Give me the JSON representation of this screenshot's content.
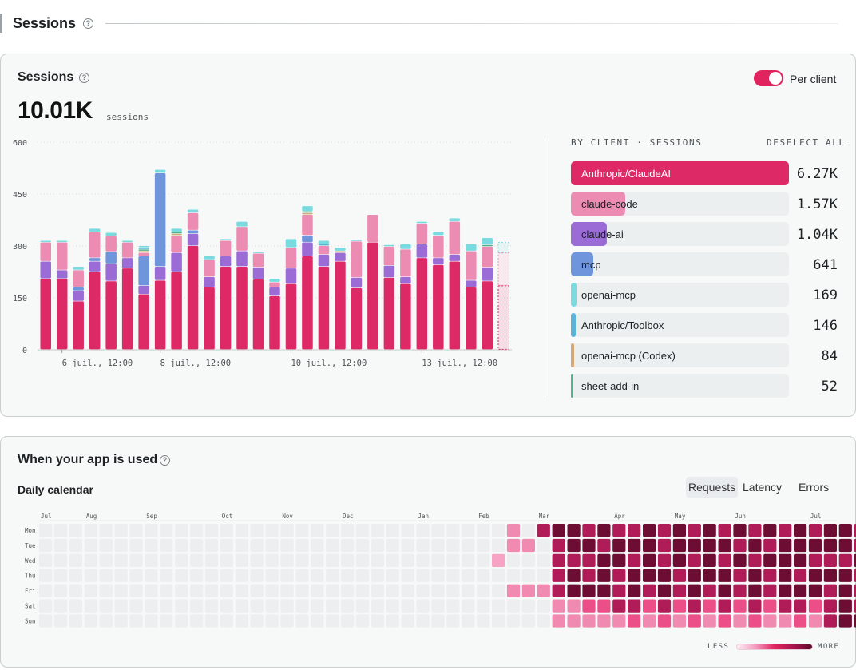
{
  "section": {
    "title": "Sessions"
  },
  "sessions_card": {
    "title": "Sessions",
    "total": "10.01K",
    "total_unit": "sessions",
    "toggle": {
      "label": "Per client",
      "on": true
    }
  },
  "client_list": {
    "header": "BY CLIENT · SESSIONS",
    "deselect": "DESELECT ALL",
    "items": [
      {
        "name": "Anthropic/ClaudeAI",
        "value": "6.27K",
        "share": 1.0,
        "color": "#dd2a66"
      },
      {
        "name": "claude-code",
        "value": "1.57K",
        "share": 0.25,
        "color": "#ec8cb2"
      },
      {
        "name": "claude-ai",
        "value": "1.04K",
        "share": 0.166,
        "color": "#9c6cd6"
      },
      {
        "name": "mcp",
        "value": "641",
        "share": 0.103,
        "color": "#6f95dc"
      },
      {
        "name": "openai-mcp",
        "value": "169",
        "share": 0.027,
        "color": "#79dbe0"
      },
      {
        "name": "Anthropic/Toolbox",
        "value": "146",
        "share": 0.023,
        "color": "#5bb4d8"
      },
      {
        "name": "openai-mcp (Codex)",
        "value": "84",
        "share": 0.013,
        "color": "#d6a877"
      },
      {
        "name": "sheet-add-in",
        "value": "52",
        "share": 0.008,
        "color": "#4fb38e"
      }
    ]
  },
  "chart_data": {
    "type": "bar",
    "stacked": true,
    "ylim": [
      0,
      600
    ],
    "yticks": [
      "0",
      "150",
      "300",
      "450",
      "600"
    ],
    "xticks": [
      {
        "label": "6 juil., 12:00",
        "index": 1
      },
      {
        "label": "8 juil., 12:00",
        "index": 7
      },
      {
        "label": "10 juil., 12:00",
        "index": 15
      },
      {
        "label": "13 juil., 12:00",
        "index": 23
      }
    ],
    "series": [
      {
        "name": "Anthropic/ClaudeAI",
        "color": "#dd2a66",
        "values": [
          205,
          205,
          140,
          225,
          198,
          235,
          160,
          200,
          225,
          300,
          180,
          240,
          240,
          203,
          155,
          190,
          270,
          240,
          255,
          178,
          310,
          208,
          190,
          265,
          245,
          255,
          180,
          198,
          185
        ]
      },
      {
        "name": "claude-ai",
        "color": "#9c6cd6",
        "values": [
          50,
          25,
          30,
          30,
          50,
          30,
          25,
          40,
          55,
          35,
          30,
          30,
          45,
          35,
          25,
          45,
          40,
          35,
          25,
          30,
          0,
          35,
          20,
          40,
          20,
          20,
          20,
          40,
          0
        ]
      },
      {
        "name": "mcp",
        "color": "#6f95dc",
        "values": [
          0,
          0,
          10,
          10,
          35,
          0,
          85,
          270,
          0,
          10,
          0,
          0,
          0,
          0,
          0,
          0,
          20,
          0,
          0,
          0,
          0,
          0,
          0,
          0,
          0,
          0,
          0,
          0,
          0
        ]
      },
      {
        "name": "claude-code",
        "color": "#ec8cb2",
        "values": [
          55,
          80,
          50,
          75,
          45,
          45,
          10,
          0,
          50,
          50,
          50,
          45,
          70,
          40,
          15,
          60,
          60,
          25,
          0,
          105,
          80,
          55,
          80,
          60,
          65,
          95,
          85,
          60,
          95
        ]
      },
      {
        "name": "openai-mcp (Codex)",
        "color": "#d6a877",
        "values": [
          0,
          0,
          0,
          0,
          0,
          0,
          5,
          0,
          5,
          0,
          0,
          0,
          0,
          0,
          0,
          0,
          5,
          0,
          5,
          0,
          0,
          0,
          0,
          0,
          0,
          0,
          0,
          0,
          0
        ]
      },
      {
        "name": "sheet-add-in",
        "color": "#4fb38e",
        "values": [
          0,
          0,
          0,
          0,
          0,
          0,
          5,
          0,
          5,
          0,
          0,
          0,
          0,
          0,
          0,
          0,
          5,
          0,
          0,
          0,
          0,
          0,
          0,
          0,
          0,
          0,
          0,
          5,
          0
        ]
      },
      {
        "name": "Anthropic/Toolbox",
        "color": "#5bb4d8",
        "values": [
          0,
          0,
          0,
          0,
          0,
          0,
          5,
          0,
          0,
          0,
          0,
          0,
          0,
          0,
          0,
          0,
          0,
          5,
          0,
          0,
          0,
          0,
          0,
          0,
          0,
          0,
          0,
          0,
          0
        ]
      },
      {
        "name": "openai-mcp",
        "color": "#79dbe0",
        "values": [
          5,
          5,
          10,
          10,
          10,
          5,
          5,
          10,
          10,
          10,
          10,
          5,
          15,
          5,
          10,
          25,
          15,
          10,
          10,
          5,
          0,
          5,
          15,
          5,
          10,
          10,
          20,
          20,
          30
        ]
      }
    ],
    "partial_last": true
  },
  "usage_card": {
    "title": "When your app is used",
    "subtitle": "Daily calendar",
    "tabs": [
      "Requests",
      "Latency",
      "Errors"
    ],
    "active_tab": "Requests",
    "weekdays": [
      "Mon",
      "Tue",
      "Wed",
      "Thu",
      "Fri",
      "Sat",
      "Sun"
    ],
    "months": [
      {
        "label": "Jul",
        "col": 0
      },
      {
        "label": "Aug",
        "col": 3
      },
      {
        "label": "Sep",
        "col": 7
      },
      {
        "label": "Oct",
        "col": 12
      },
      {
        "label": "Nov",
        "col": 16
      },
      {
        "label": "Dec",
        "col": 20
      },
      {
        "label": "Jan",
        "col": 25
      },
      {
        "label": "Feb",
        "col": 29
      },
      {
        "label": "Mar",
        "col": 33
      },
      {
        "label": "Apr",
        "col": 38
      },
      {
        "label": "May",
        "col": 42
      },
      {
        "label": "Jun",
        "col": 46
      },
      {
        "label": "Jul",
        "col": 51
      }
    ],
    "levels_by_weekday": [
      "00000000000000000000000000000002045545445454545454545545",
      "0000000000000000000000000000000220455455545555454555554",
      "0000000000000000000000000000001000444554545454545554445",
      "0000000000000000000000000000000000454545554555454545554",
      "0000000000000000000000000000000222455545454545454555454",
      "0000000000000000000000000000000000223344343434343443454",
      "0000000000000000000000000000000000222223232323232232455"
    ],
    "legend_less": "LESS",
    "legend_more": "MORE",
    "level_colors": [
      "#eceeef",
      "#f7a3c3",
      "#f18ab0",
      "#ec4f88",
      "#b01c57",
      "#6e0d33"
    ]
  }
}
